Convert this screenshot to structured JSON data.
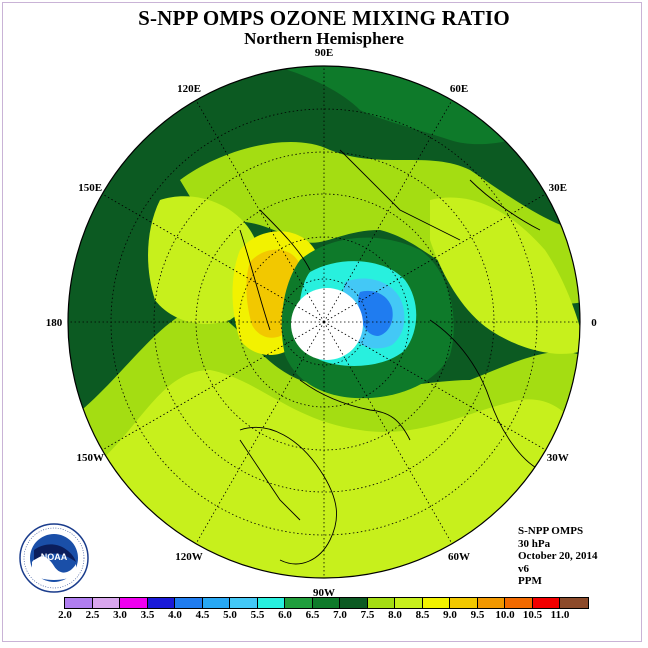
{
  "title": "S-NPP OMPS OZONE MIXING RATIO",
  "subtitle": "Northern Hemisphere",
  "info": {
    "line1": "S-NPP OMPS",
    "line2": "30 hPa",
    "line3": "October 20, 2014",
    "line4": "v6",
    "line5": "PPM"
  },
  "logo_text": "NOAA",
  "logo_ring_text": "NATIONAL OCEANIC AND ATMOSPHERIC ADMINISTRATION U.S. DEPARTMENT OF COMMERCE",
  "longitude_labels": [
    "90E",
    "60E",
    "30E",
    "0",
    "30W",
    "60W",
    "90W",
    "120W",
    "150W",
    "180",
    "150E",
    "120E"
  ],
  "colorbar": {
    "colors": [
      "#b07ef0",
      "#d9a6ee",
      "#f000f0",
      "#1a1ad8",
      "#1f7cf0",
      "#28a8f4",
      "#43c8f6",
      "#28f0de",
      "#1f9e3c",
      "#0e7a2a",
      "#0c5a22",
      "#a4dd12",
      "#c7f01c",
      "#f2f200",
      "#f2c800",
      "#f29800",
      "#f26a00",
      "#f20000",
      "#8c4a2a"
    ],
    "ticks": [
      "2.0",
      "2.5",
      "3.0",
      "3.5",
      "4.0",
      "4.5",
      "5.0",
      "5.5",
      "6.0",
      "6.5",
      "7.0",
      "7.5",
      "8.0",
      "8.5",
      "9.0",
      "9.5",
      "10.0",
      "10.5",
      "11.0"
    ]
  },
  "map_colors": {
    "ocean_background": "#0c5a22",
    "mid_green": "#a4dd12",
    "light_green": "#c7f01c",
    "yellow": "#f2f200",
    "orange": "#f2c800",
    "dark_green": "#0e7a2a",
    "cyan": "#28f0de",
    "light_blue": "#43c8f6",
    "blue": "#1f7cf0",
    "pole_hole": "#ffffff"
  }
}
